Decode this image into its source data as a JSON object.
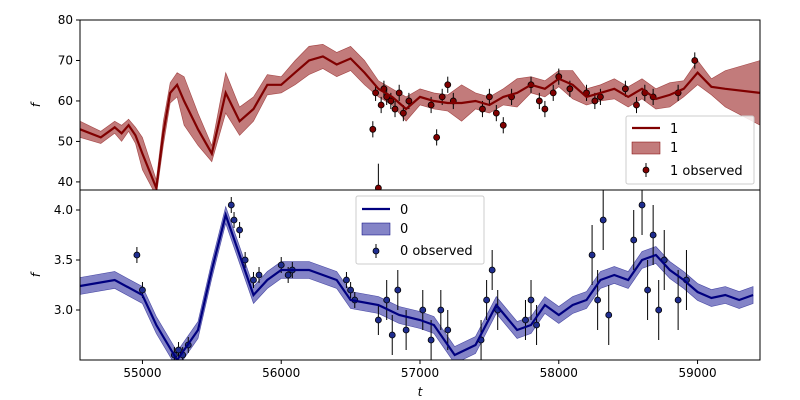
{
  "chart_data": [
    {
      "type": "line",
      "panel": "top",
      "xlabel": "",
      "ylabel": "f",
      "xlim": [
        54550,
        59450
      ],
      "ylim": [
        38,
        80
      ],
      "yticks": [
        40,
        50,
        60,
        70,
        80
      ],
      "legend": {
        "placement": "lower-right",
        "entries": [
          "1",
          "1",
          "1 observed"
        ]
      },
      "colors": {
        "line": "#800000",
        "band": "#b35a5a",
        "points": "#800000"
      },
      "series": [
        {
          "name": "1",
          "kind": "model",
          "x": [
            54550,
            54700,
            54800,
            54850,
            54900,
            54950,
            55000,
            55100,
            55150,
            55200,
            55250,
            55300,
            55400,
            55500,
            55600,
            55700,
            55800,
            55900,
            56000,
            56100,
            56200,
            56300,
            56400,
            56500,
            56600,
            56700,
            56800,
            56900,
            57000,
            57100,
            57200,
            57300,
            57400,
            57500,
            57600,
            57700,
            57800,
            57900,
            58000,
            58100,
            58200,
            58300,
            58400,
            58500,
            58600,
            58700,
            58800,
            58900,
            59000,
            59100,
            59200,
            59450
          ],
          "y": [
            53,
            51,
            53.5,
            52,
            54,
            51.5,
            47,
            38.5,
            52,
            62,
            64,
            60,
            53,
            47,
            62,
            55,
            58,
            64,
            64,
            67,
            70,
            71,
            69,
            70.5,
            67,
            63,
            61,
            58,
            61,
            60,
            59.5,
            59.5,
            60,
            59,
            61,
            62,
            64,
            63,
            65.5,
            64,
            61,
            62,
            63,
            61,
            63,
            60.5,
            61.5,
            63,
            67,
            63.5,
            63,
            62
          ],
          "uncertainty": [
            2,
            1.5,
            1.5,
            2,
            1.5,
            2,
            4,
            2,
            3,
            2.5,
            3,
            6,
            4,
            2,
            5,
            3.5,
            3,
            2.5,
            2,
            3,
            3.5,
            3,
            3,
            3,
            3,
            2,
            2,
            3,
            2,
            2,
            2,
            4.5,
            2,
            2,
            2,
            3.5,
            2,
            2,
            2,
            3.5,
            2,
            2,
            2.5,
            2.5,
            2.5,
            2.5,
            3,
            2,
            3,
            2,
            4.5,
            8
          ]
        },
        {
          "name": "1 observed",
          "kind": "observed",
          "x": [
            56660,
            56680,
            56700,
            56720,
            56740,
            56760,
            56790,
            56820,
            56850,
            56880,
            56920,
            57080,
            57120,
            57160,
            57200,
            57240,
            57450,
            57500,
            57550,
            57600,
            57660,
            57800,
            57860,
            57900,
            57960,
            58000,
            58080,
            58200,
            58260,
            58300,
            58480,
            58560,
            58620,
            58680,
            58860,
            58980
          ],
          "y": [
            53,
            62,
            38.5,
            59,
            63,
            61,
            60,
            58,
            62,
            57,
            60,
            59,
            51,
            61,
            64,
            60,
            58,
            61,
            57,
            54,
            61,
            64,
            60,
            58,
            62,
            66,
            63,
            62,
            60,
            61,
            63,
            59,
            62,
            61,
            62,
            70
          ],
          "yerr": [
            2,
            2,
            6,
            2,
            2,
            2,
            2,
            2,
            2,
            2,
            2,
            2,
            2,
            2,
            2,
            2,
            2,
            2,
            2,
            2,
            2,
            2,
            2,
            2,
            2,
            2,
            2,
            2,
            2,
            2,
            2,
            2,
            2,
            2,
            2,
            2
          ]
        }
      ]
    },
    {
      "type": "line",
      "panel": "bottom",
      "xlabel": "t",
      "ylabel": "f",
      "xlim": [
        54550,
        59450
      ],
      "ylim": [
        2.5,
        4.2
      ],
      "xticks": [
        55000,
        56000,
        57000,
        58000,
        59000
      ],
      "yticks": [
        3.0,
        3.5,
        4.0
      ],
      "legend": {
        "placement": "upper-center",
        "entries": [
          "0",
          "0",
          "0 observed"
        ]
      },
      "colors": {
        "line": "#00007f",
        "band": "#6f6fbd",
        "points": "#1f2d8f"
      },
      "series": [
        {
          "name": "0",
          "kind": "model",
          "x": [
            54550,
            54800,
            55000,
            55100,
            55250,
            55400,
            55500,
            55600,
            55700,
            55800,
            55900,
            56000,
            56200,
            56400,
            56500,
            56700,
            56850,
            57000,
            57100,
            57250,
            57400,
            57550,
            57700,
            57800,
            57900,
            58000,
            58100,
            58200,
            58300,
            58400,
            58500,
            58600,
            58700,
            58800,
            58900,
            59000,
            59100,
            59200,
            59300,
            59400
          ],
          "y": [
            3.24,
            3.3,
            3.15,
            2.85,
            2.5,
            2.8,
            3.4,
            3.95,
            3.55,
            3.15,
            3.3,
            3.4,
            3.4,
            3.3,
            3.1,
            3.05,
            2.95,
            2.9,
            2.85,
            2.55,
            2.65,
            3.05,
            2.8,
            2.85,
            3.05,
            2.95,
            3.05,
            3.1,
            3.3,
            3.35,
            3.3,
            3.5,
            3.55,
            3.4,
            3.3,
            3.18,
            3.12,
            3.15,
            3.1,
            3.15
          ]
        },
        {
          "name": "0 observed",
          "kind": "observed",
          "x": [
            54960,
            55000,
            55230,
            55260,
            55290,
            55330,
            55640,
            55660,
            55700,
            55740,
            55800,
            55840,
            56000,
            56050,
            56080,
            56470,
            56500,
            56530,
            56700,
            56760,
            56800,
            56840,
            56900,
            57020,
            57080,
            57150,
            57200,
            57440,
            57480,
            57520,
            57560,
            57760,
            57800,
            57840,
            58240,
            58280,
            58320,
            58360,
            58540,
            58600,
            58640,
            58680,
            58720,
            58760,
            58860,
            58920
          ],
          "y": [
            3.55,
            3.2,
            2.55,
            2.6,
            2.55,
            2.65,
            4.05,
            3.9,
            3.8,
            3.5,
            3.3,
            3.35,
            3.45,
            3.35,
            3.4,
            3.3,
            3.2,
            3.1,
            2.9,
            3.1,
            2.75,
            3.2,
            2.8,
            3.0,
            2.7,
            3.0,
            2.8,
            2.7,
            3.1,
            3.4,
            3.0,
            2.9,
            3.1,
            2.85,
            3.55,
            3.1,
            3.9,
            2.95,
            3.7,
            4.05,
            3.2,
            3.75,
            3.0,
            3.5,
            3.1,
            3.3
          ],
          "yerr": [
            0.08,
            0.08,
            0.08,
            0.08,
            0.08,
            0.08,
            0.08,
            0.08,
            0.08,
            0.08,
            0.08,
            0.08,
            0.08,
            0.08,
            0.08,
            0.08,
            0.08,
            0.08,
            0.15,
            0.2,
            0.2,
            0.2,
            0.2,
            0.2,
            0.2,
            0.2,
            0.2,
            0.2,
            0.2,
            0.2,
            0.2,
            0.2,
            0.2,
            0.2,
            0.3,
            0.3,
            0.3,
            0.3,
            0.3,
            0.3,
            0.3,
            0.3,
            0.3,
            0.3,
            0.3,
            0.3
          ]
        }
      ]
    }
  ]
}
